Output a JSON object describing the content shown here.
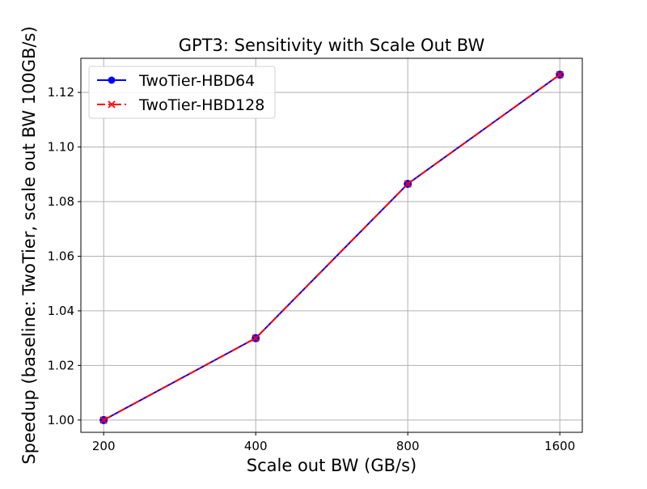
{
  "chart_data": {
    "type": "line",
    "title": "GPT3: Sensitivity with Scale Out BW",
    "xlabel": "Scale out BW (GB/s)",
    "ylabel": "Speedup (baseline: TwoTier, scale out BW 100GB/s)",
    "categories": [
      "200",
      "400",
      "800",
      "1600"
    ],
    "y_ticks": [
      "1.00",
      "1.02",
      "1.04",
      "1.06",
      "1.08",
      "1.10",
      "1.12"
    ],
    "ylim": [
      0.9955,
      1.1325
    ],
    "grid": true,
    "legend_position": "top-left",
    "series": [
      {
        "name": "TwoTier-HBD64",
        "values": [
          1.0,
          1.03,
          1.0865,
          1.1265
        ],
        "color": "#0000ff",
        "line_style": "solid",
        "marker": "circle"
      },
      {
        "name": "TwoTier-HBD128",
        "values": [
          1.0,
          1.03,
          1.0865,
          1.1265
        ],
        "color": "#ff0000",
        "line_style": "dash-dot",
        "marker": "x"
      }
    ]
  }
}
